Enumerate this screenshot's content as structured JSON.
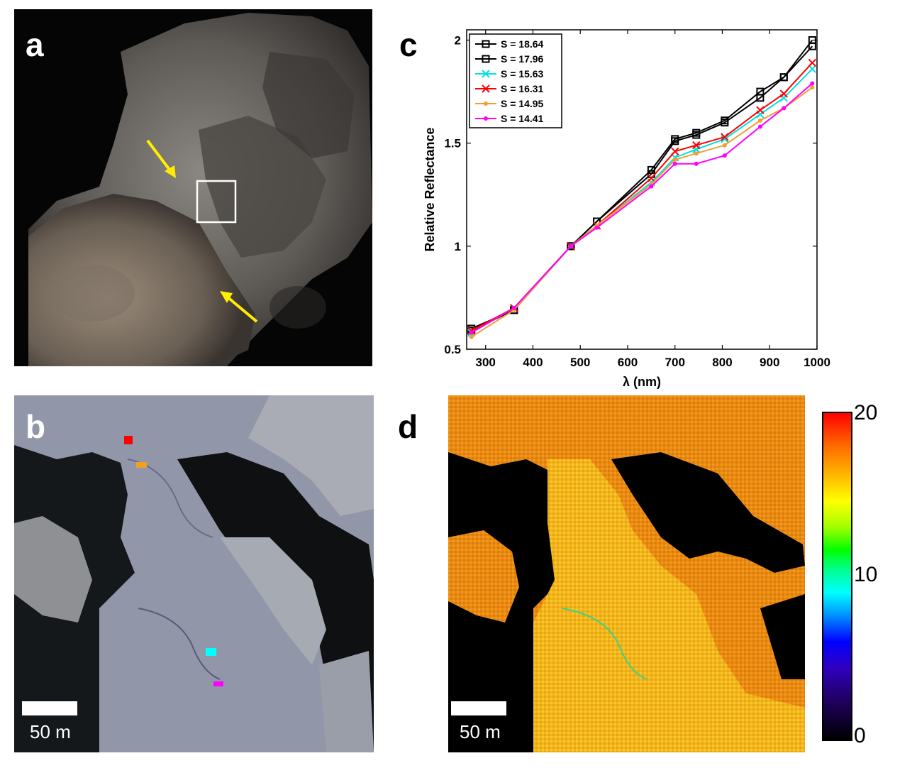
{
  "panels": {
    "a": {
      "letter": "a"
    },
    "b": {
      "letter": "b",
      "scale_label": "50 m"
    },
    "c": {
      "letter": "c"
    },
    "d": {
      "letter": "d",
      "scale_label": "50 m"
    }
  },
  "colorbar": {
    "ticks": [
      "20",
      "10",
      "0"
    ],
    "range": [
      0,
      20
    ]
  },
  "sample_markers": [
    {
      "color": "#ff0000"
    },
    {
      "color": "#f0a020"
    },
    {
      "color": "#00ffff"
    },
    {
      "color": "#ff00ff"
    }
  ],
  "chart_data": {
    "type": "line",
    "title": "",
    "xlabel": "λ (nm)",
    "ylabel": "Relative Reflectance",
    "xlim": [
      260,
      1000
    ],
    "ylim": [
      0.5,
      2.05
    ],
    "xticks": [
      300,
      400,
      500,
      600,
      700,
      800,
      900,
      1000
    ],
    "yticks": [
      0.5,
      1,
      1.5,
      2
    ],
    "ytick_labels": [
      "0.5",
      "1",
      "1.5",
      "2"
    ],
    "legend_position": "top-left",
    "x": [
      270,
      360,
      480,
      535,
      650,
      700,
      745,
      805,
      880,
      930,
      990
    ],
    "series": [
      {
        "name": "S = 18.64",
        "color": "#000000",
        "marker": "square",
        "values": [
          0.6,
          0.69,
          1.0,
          1.12,
          1.37,
          1.52,
          1.55,
          1.61,
          1.75,
          1.82,
          2.0
        ]
      },
      {
        "name": "S = 17.96",
        "color": "#000000",
        "marker": "square",
        "values": [
          0.59,
          0.69,
          1.0,
          1.12,
          1.35,
          1.51,
          1.54,
          1.6,
          1.72,
          1.82,
          1.97
        ]
      },
      {
        "name": "S = 15.63",
        "color": "#00e0e0",
        "marker": "x",
        "values": [
          0.58,
          0.7,
          1.0,
          1.1,
          1.31,
          1.43,
          1.47,
          1.52,
          1.64,
          1.72,
          1.86
        ]
      },
      {
        "name": "S = 16.31",
        "color": "#ff0000",
        "marker": "x",
        "values": [
          0.59,
          0.7,
          1.0,
          1.1,
          1.33,
          1.46,
          1.49,
          1.53,
          1.66,
          1.74,
          1.89
        ]
      },
      {
        "name": "S = 14.95",
        "color": "#f0a030",
        "marker": "dot",
        "values": [
          0.56,
          0.69,
          1.0,
          1.1,
          1.3,
          1.42,
          1.45,
          1.49,
          1.61,
          1.67,
          1.77
        ]
      },
      {
        "name": "S = 14.41",
        "color": "#ff00ff",
        "marker": "dot",
        "values": [
          0.58,
          0.7,
          1.0,
          1.09,
          1.29,
          1.4,
          1.4,
          1.44,
          1.58,
          1.67,
          1.79
        ]
      }
    ]
  }
}
